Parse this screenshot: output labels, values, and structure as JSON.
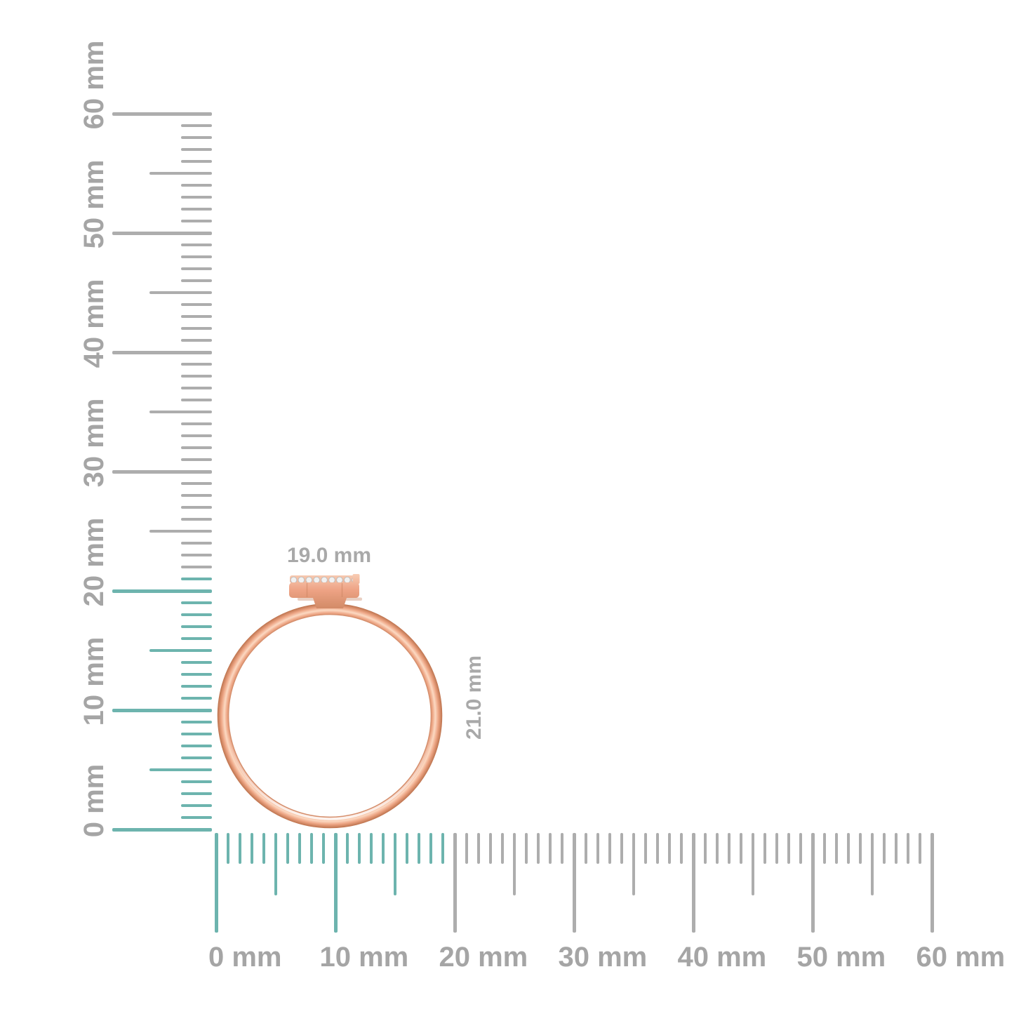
{
  "colors": {
    "background": "#ffffff",
    "tick_gray": "#adadad",
    "tick_teal": "#6db4ae",
    "ruler_label_gray": "#a5a5a5",
    "annotation_gray": "#a9a9a9",
    "gold_dark": "#c9825f",
    "gold_mid": "#eda584",
    "gold_light": "#fcd9c2",
    "gold_deep": "#bf7550",
    "gold_head_top": "#f8cdb4",
    "gold_head_mid": "#eea385",
    "gold_head_bottom": "#d18a66",
    "highlight_white": "#ffffff",
    "diamond_fill": "#f1f1f1",
    "diamond_edge": "#bcbcbc"
  },
  "rulers": {
    "unit": "mm",
    "vertical": {
      "orientation": "vertical",
      "min_mm": 0,
      "max_mm": 60,
      "major_step_mm": 10,
      "mid_step_mm": 5,
      "minor_step_mm": 1,
      "highlight_to_mm": 21,
      "labels": [
        "0 mm",
        "10 mm",
        "20 mm",
        "30 mm",
        "40 mm",
        "50 mm",
        "60 mm"
      ]
    },
    "horizontal": {
      "orientation": "horizontal",
      "min_mm": 0,
      "max_mm": 60,
      "major_step_mm": 10,
      "mid_step_mm": 5,
      "minor_step_mm": 1,
      "highlight_to_mm": 19,
      "labels": [
        "0 mm",
        "10 mm",
        "20 mm",
        "30 mm",
        "40 mm",
        "50 mm",
        "60 mm"
      ]
    }
  },
  "annotations": {
    "ring_width_label": "19.0 mm",
    "ring_height_label": "21.0 mm",
    "ring_width_mm": 19.0,
    "ring_height_mm": 21.0
  },
  "object": {
    "description": "rose gold ring side view with diamond halo head",
    "diamond_count": 9
  }
}
